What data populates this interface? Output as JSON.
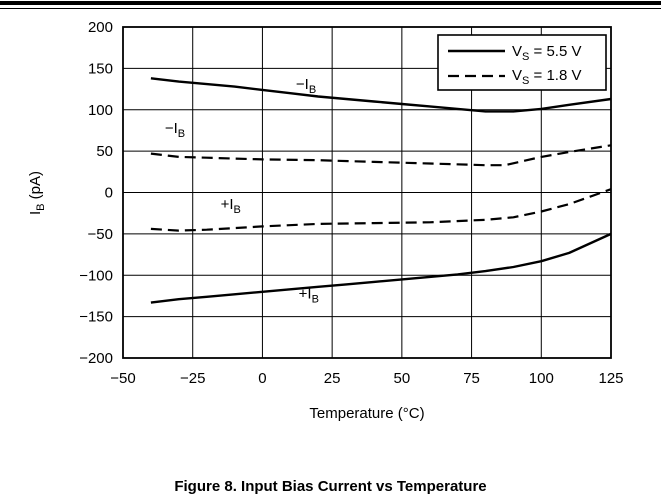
{
  "caption": "Figure 8. Input Bias Current vs Temperature",
  "colors": {
    "line": "#000000",
    "grid": "#000000",
    "background": "#ffffff"
  },
  "chart_data": {
    "type": "line",
    "xlabel": "Temperature (°C)",
    "ylabel_main": "I",
    "ylabel_sub": "B",
    "ylabel_unit": " (pA)",
    "xlim": [
      -50,
      125
    ],
    "ylim": [
      -200,
      200
    ],
    "xticks": [
      -50,
      -25,
      0,
      25,
      50,
      75,
      100,
      125
    ],
    "yticks": [
      200,
      150,
      100,
      50,
      0,
      -50,
      -100,
      -150,
      -200
    ],
    "grid": true,
    "legend_position": "top-right",
    "legend": [
      {
        "main": "V",
        "sub": "S",
        "rest": " = 5.5 V",
        "style": "solid"
      },
      {
        "main": "V",
        "sub": "S",
        "rest": " = 1.8 V",
        "style": "dashed"
      }
    ],
    "series": [
      {
        "name": "V_S = 5.5 V, -I_B",
        "style": "solid",
        "x": [
          -40,
          -30,
          -20,
          -10,
          0,
          10,
          20,
          30,
          40,
          50,
          60,
          70,
          80,
          90,
          100,
          110,
          125
        ],
        "y": [
          138,
          134,
          131,
          128,
          124,
          120,
          116,
          113,
          110,
          107,
          104,
          101,
          98,
          98,
          101,
          106,
          113
        ]
      },
      {
        "name": "V_S = 5.5 V, +I_B",
        "style": "solid",
        "x": [
          -40,
          -30,
          -20,
          -10,
          0,
          10,
          20,
          30,
          40,
          50,
          60,
          70,
          80,
          90,
          100,
          110,
          125
        ],
        "y": [
          -133,
          -129,
          -126,
          -123,
          -120,
          -117,
          -114,
          -111,
          -108,
          -105,
          -102,
          -99,
          -95,
          -90,
          -83,
          -73,
          -50
        ]
      },
      {
        "name": "V_S = 1.8 V, -I_B",
        "style": "dashed",
        "x": [
          -40,
          -30,
          -20,
          -10,
          0,
          20,
          40,
          60,
          80,
          87,
          100,
          110,
          125
        ],
        "y": [
          47,
          43,
          42,
          41,
          40,
          39,
          37,
          35,
          33,
          33,
          43,
          49,
          57
        ]
      },
      {
        "name": "V_S = 1.8 V, +I_B",
        "style": "dashed",
        "x": [
          -40,
          -30,
          -20,
          -10,
          0,
          20,
          40,
          60,
          80,
          90,
          100,
          110,
          125
        ],
        "y": [
          -44,
          -46,
          -45,
          -43,
          -41,
          -38,
          -37,
          -36,
          -33,
          -30,
          -23,
          -14,
          4
        ]
      }
    ],
    "annotations": [
      {
        "prefix": "−I",
        "sub": "B",
        "x": 12,
        "y": 125
      },
      {
        "prefix": "−I",
        "sub": "B",
        "x": -35,
        "y": 72
      },
      {
        "prefix": "+I",
        "sub": "B",
        "x": -15,
        "y": -20
      },
      {
        "prefix": "+I",
        "sub": "B",
        "x": 13,
        "y": -128
      }
    ]
  }
}
